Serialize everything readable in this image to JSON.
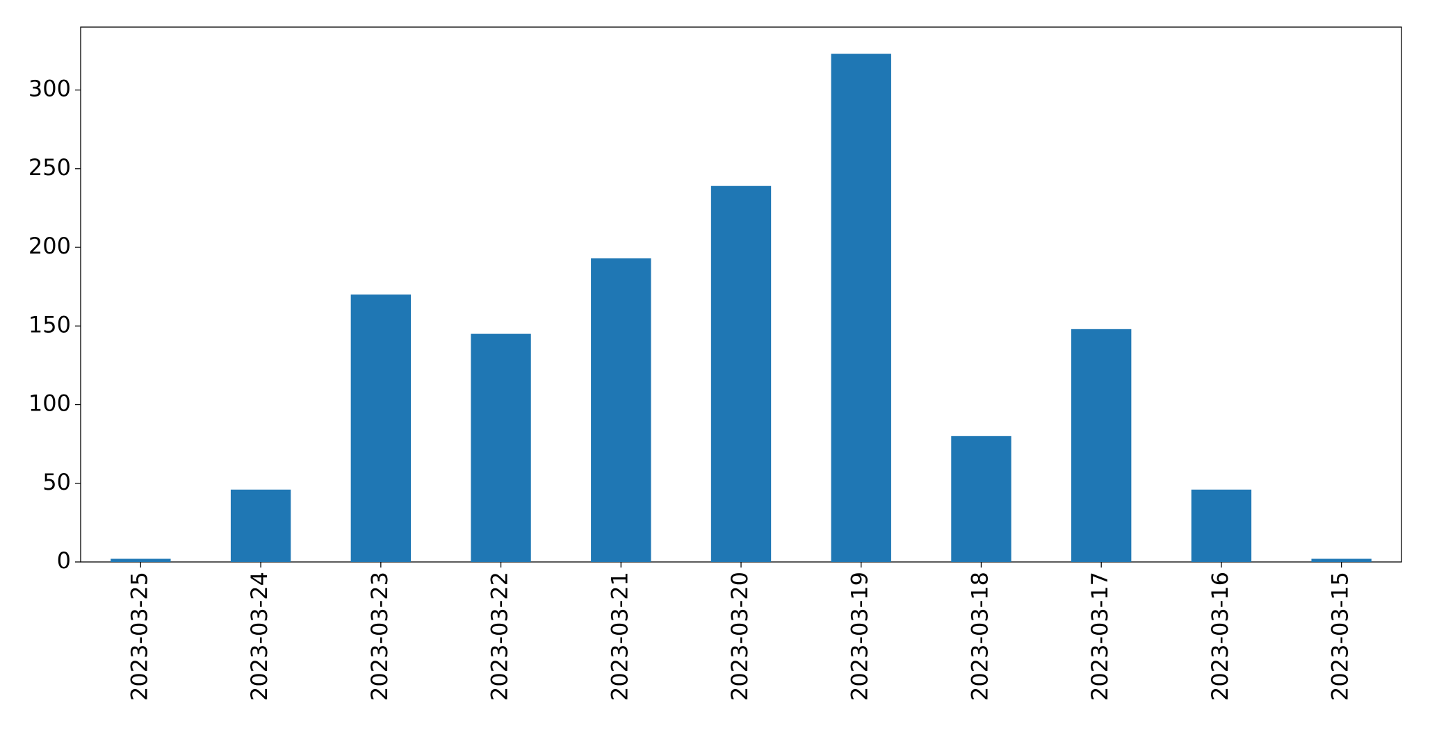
{
  "chart_data": {
    "type": "bar",
    "categories": [
      "2023-03-25",
      "2023-03-24",
      "2023-03-23",
      "2023-03-22",
      "2023-03-21",
      "2023-03-20",
      "2023-03-19",
      "2023-03-18",
      "2023-03-17",
      "2023-03-16",
      "2023-03-15"
    ],
    "values": [
      2,
      46,
      170,
      145,
      193,
      239,
      323,
      80,
      148,
      46,
      2
    ],
    "color": "#1f77b4",
    "ylim": [
      0,
      340
    ],
    "yticks": [
      0,
      50,
      100,
      150,
      200,
      250,
      300
    ],
    "grid": false
  }
}
